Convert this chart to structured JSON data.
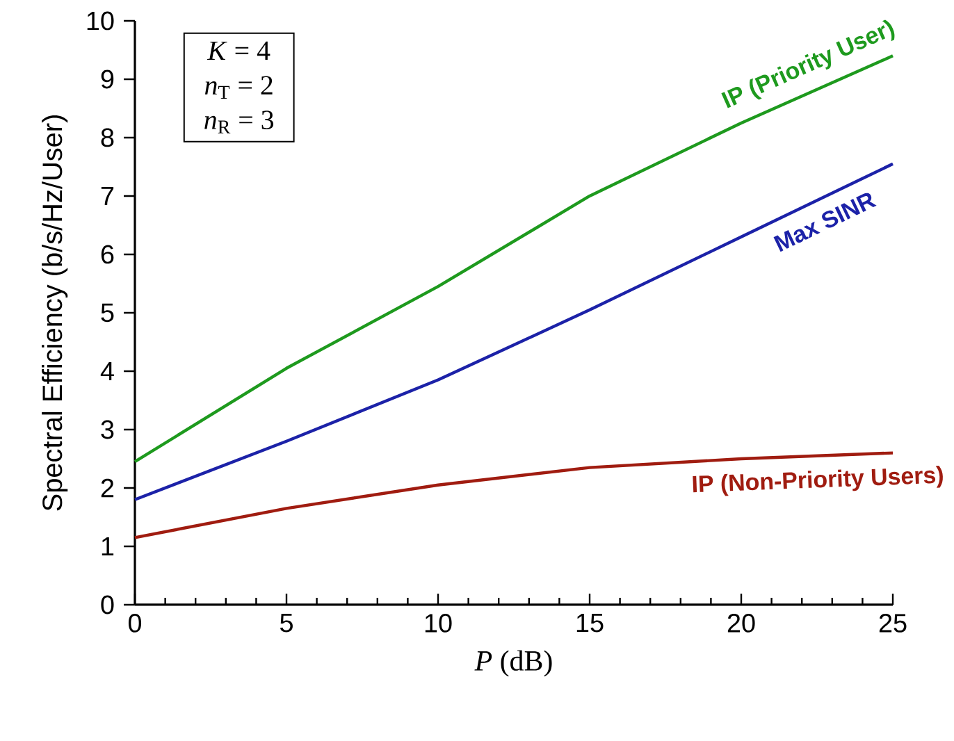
{
  "chart_data": {
    "type": "line",
    "xlabel": "*P* (dB)",
    "ylabel": "Spectral Efficiency (b/s/Hz/User)",
    "x": [
      0,
      5,
      10,
      15,
      20,
      25
    ],
    "series": [
      {
        "name": "IP (Priority User)",
        "color": "#1e9a1e",
        "values": [
          2.45,
          4.05,
          5.45,
          7.0,
          8.25,
          9.4
        ]
      },
      {
        "name": "Max SINR",
        "color": "#1c22a8",
        "values": [
          1.8,
          2.8,
          3.85,
          5.05,
          6.3,
          7.55
        ]
      },
      {
        "name": "IP (Non-Priority Users)",
        "color": "#a01c10",
        "values": [
          1.15,
          1.65,
          2.05,
          2.35,
          2.5,
          2.6
        ]
      }
    ],
    "annotations": [
      "*K* = 4",
      "*n*$_{T}$ = 2",
      "*n*$_{R}$ = 3"
    ],
    "xlim": [
      0,
      25
    ],
    "ylim": [
      0,
      10
    ],
    "xticks": [
      0,
      5,
      10,
      15,
      20,
      25
    ],
    "yticks": [
      0,
      1,
      2,
      3,
      4,
      5,
      6,
      7,
      8,
      9,
      10
    ],
    "grid": false,
    "legend": false,
    "marker": "none",
    "line_style": "solid"
  }
}
